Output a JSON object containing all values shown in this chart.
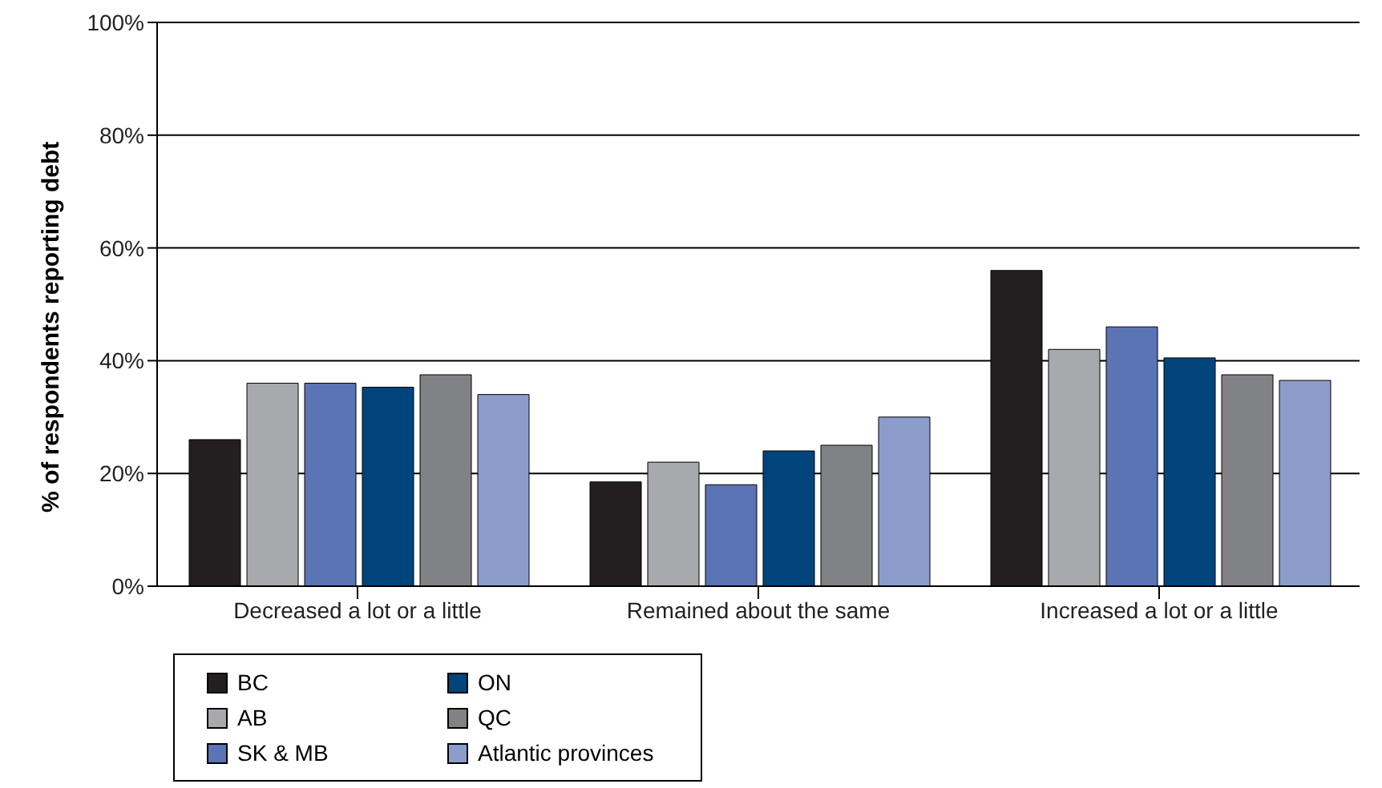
{
  "chart_data": {
    "type": "bar",
    "ylabel": "% of respondents reporting debt",
    "categories": [
      "Decreased a lot or a little",
      "Remained about the same",
      "Increased a lot or a little"
    ],
    "series": [
      {
        "name": "BC",
        "color": "#231f20",
        "values": [
          26,
          18.5,
          56
        ]
      },
      {
        "name": "AB",
        "color": "#a7a9ac",
        "values": [
          36,
          22,
          42
        ]
      },
      {
        "name": "SK & MB",
        "color": "#5b74b5",
        "values": [
          36,
          18,
          46
        ]
      },
      {
        "name": "ON",
        "color": "#00447c",
        "values": [
          35.3,
          24,
          40.5
        ]
      },
      {
        "name": "QC",
        "color": "#808285",
        "values": [
          37.5,
          25,
          37.5
        ]
      },
      {
        "name": "Atlantic provinces",
        "color": "#8c9dcb",
        "values": [
          34,
          30,
          36.5
        ]
      }
    ],
    "ylim": [
      0,
      100
    ],
    "yticks": [
      {
        "value": 0,
        "label": "0%"
      },
      {
        "value": 20,
        "label": "20%"
      },
      {
        "value": 40,
        "label": "40%"
      },
      {
        "value": 60,
        "label": "60%"
      },
      {
        "value": 80,
        "label": "80%"
      },
      {
        "value": 100,
        "label": "100%"
      }
    ],
    "grid": "y",
    "legend": "bottom left"
  }
}
